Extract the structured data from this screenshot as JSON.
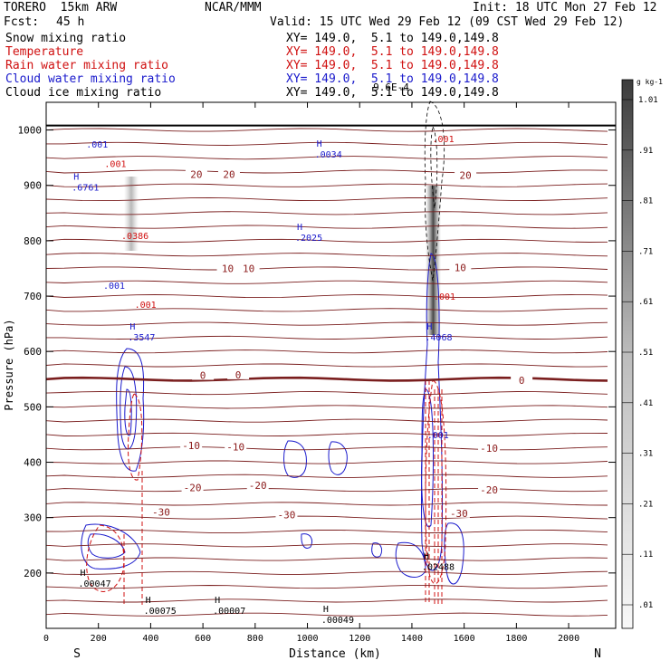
{
  "header": {
    "model": "TORERO  15km ARW",
    "org": "NCAR/MMM",
    "init": "Init: 18 UTC Mon 27 Feb 12",
    "fcst_label": "Fcst:",
    "fcst_value": "45 h",
    "valid": "Valid: 15 UTC Wed 29 Feb 12 (09 CST Wed 29 Feb 12)"
  },
  "fields": [
    {
      "name": "Snow mixing ratio",
      "xy": "XY= 149.0,  5.1 to 149.0,149.8",
      "color": "#000000"
    },
    {
      "name": "Temperature",
      "xy": "XY= 149.0,  5.1 to 149.0,149.8",
      "color": "#d01010"
    },
    {
      "name": "Rain water mixing ratio",
      "xy": "XY= 149.0,  5.1 to 149.0,149.8",
      "color": "#d01010"
    },
    {
      "name": "Cloud water mixing ratio",
      "xy": "XY= 149.0,  5.1 to 149.0,149.8",
      "color": "#1a1acc"
    },
    {
      "name": "Cloud ice mixing ratio",
      "xy": "XY= 149.0,  5.1 to 149.0,149.8",
      "color": "#000000"
    }
  ],
  "chart_data": {
    "type": "cross-section contour",
    "xlabel": "Distance (km)",
    "ylabel": "Pressure (hPa)",
    "xlim": [
      0,
      2180
    ],
    "ylim": [
      1050,
      100
    ],
    "x_ticks": [
      0,
      200,
      400,
      600,
      800,
      1000,
      1200,
      1400,
      1600,
      1800,
      2000
    ],
    "y_ticks": [
      200,
      300,
      400,
      500,
      600,
      700,
      800,
      900,
      1000
    ],
    "x_end_labels": {
      "left": "S",
      "right": "N"
    },
    "colorbar": {
      "unit": "g kg-1",
      "labels": [
        ".01",
        ".11",
        ".21",
        ".31",
        ".41",
        ".51",
        ".61",
        ".71",
        ".81",
        ".91",
        "1.01"
      ]
    },
    "temperature_isotherms": [
      {
        "label": "-30",
        "label_x": [
          440,
          920,
          1580
        ],
        "p": [
          310,
          305,
          308
        ]
      },
      {
        "label": "-20",
        "label_x": [
          560,
          810,
          1695
        ],
        "p": [
          354,
          358,
          350
        ]
      },
      {
        "label": "-10",
        "label_x": [
          555,
          725,
          1695
        ],
        "p": [
          430,
          428,
          425
        ]
      },
      {
        "label": "0",
        "label_x": [
          600,
          735,
          1820
        ],
        "p": [
          557,
          558,
          548
        ]
      },
      {
        "label": "10",
        "label_x": [
          695,
          775,
          1585
        ],
        "p": [
          750,
          750,
          752
        ]
      },
      {
        "label": "20",
        "label_x": [
          575,
          700,
          1605
        ],
        "p": [
          920,
          920,
          918
        ]
      }
    ],
    "maxima": [
      {
        "label": ".00047",
        "x": 130,
        "p": 185,
        "series": "Snow mixing ratio"
      },
      {
        "label": ".00075",
        "x": 380,
        "p": 136,
        "series": "Snow mixing ratio"
      },
      {
        "label": ".00007",
        "x": 645,
        "p": 136,
        "series": "Snow mixing ratio"
      },
      {
        "label": ".00049",
        "x": 1060,
        "p": 120,
        "series": "Cloud ice mixing ratio"
      },
      {
        "label": ".02488",
        "x": 1445,
        "p": 215,
        "series": "Snow mixing ratio"
      },
      {
        "label": ".3547",
        "x": 320,
        "p": 630,
        "series": "Cloud water mixing ratio"
      },
      {
        "label": ".4068",
        "x": 1457,
        "p": 630,
        "series": "Cloud water mixing ratio"
      },
      {
        "label": ".2025",
        "x": 960,
        "p": 810,
        "series": "Cloud water mixing ratio"
      },
      {
        "label": ".6761",
        "x": 105,
        "p": 900,
        "series": "Cloud water mixing ratio"
      },
      {
        "label": ".0034",
        "x": 1035,
        "p": 960,
        "series": "Cloud water mixing ratio"
      }
    ],
    "contour_labels": [
      {
        "label": ".001",
        "x": 380,
        "p": 685,
        "series": "Rain water mixing ratio"
      },
      {
        "label": ".001",
        "x": 260,
        "p": 720,
        "series": "Cloud water mixing ratio"
      },
      {
        "label": ".0386",
        "x": 340,
        "p": 810,
        "series": "Rain water mixing ratio"
      },
      {
        "label": ".001",
        "x": 265,
        "p": 940,
        "series": "Rain water mixing ratio"
      },
      {
        "label": ".001",
        "x": 195,
        "p": 975,
        "series": "Cloud water mixing ratio"
      },
      {
        "label": ".001",
        "x": 1500,
        "p": 450,
        "series": "Cloud water mixing ratio"
      },
      {
        "label": ".001",
        "x": 1525,
        "p": 700,
        "series": "Rain water mixing ratio"
      },
      {
        "label": ".001",
        "x": 1520,
        "p": 985,
        "series": "Rain water mixing ratio"
      }
    ],
    "top_fragment": "9.6E-4"
  }
}
